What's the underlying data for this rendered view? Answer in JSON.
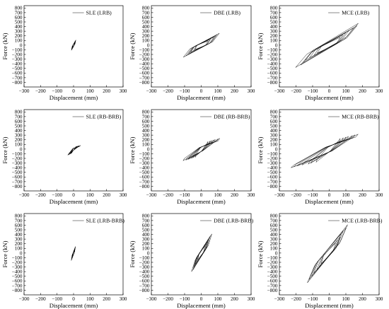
{
  "figure_title": "",
  "chart_data": [
    {
      "type": "line",
      "panel": "SLE (LRB)",
      "legend": "SLE (LRB)",
      "isolation_system": "LRB",
      "level": "SLE",
      "xlabel": "Displacement (mm)",
      "ylabel": "Force (kN)",
      "xlim": [
        -300,
        300
      ],
      "ylim": [
        -900,
        850
      ],
      "xticks": [
        -300,
        -200,
        -100,
        0,
        100,
        200,
        300
      ],
      "yticks": [
        -800,
        -700,
        -600,
        -500,
        -400,
        -300,
        -200,
        -100,
        0,
        100,
        200,
        300,
        400,
        500,
        600,
        700,
        800
      ],
      "loop": {
        "x_range": [
          -14,
          14
        ],
        "y_range": [
          -110,
          110
        ],
        "model": "bilinear",
        "dy": 38
      }
    },
    {
      "type": "line",
      "panel": "DBE (LRB)",
      "legend": "DBE (LRB)",
      "isolation_system": "LRB",
      "level": "DBE",
      "xlabel": "Displacement (mm)",
      "ylabel": "Force (kN)",
      "xlim": [
        -300,
        300
      ],
      "ylim": [
        -900,
        850
      ],
      "xticks": [
        -300,
        -200,
        -100,
        0,
        100,
        200,
        300
      ],
      "yticks": [
        -800,
        -700,
        -600,
        -500,
        -400,
        -300,
        -200,
        -100,
        0,
        100,
        200,
        300,
        400,
        500,
        600,
        700,
        800
      ],
      "loop": {
        "x_range": [
          -110,
          115
        ],
        "y_range": [
          -260,
          255
        ],
        "model": "bilinear",
        "dy": 78
      }
    },
    {
      "type": "line",
      "panel": "MCE (LRB)",
      "legend": "MCE (LRB)",
      "isolation_system": "LRB",
      "level": "MCE",
      "xlabel": "Displacement (mm)",
      "ylabel": "Force (kN)",
      "xlim": [
        -300,
        300
      ],
      "ylim": [
        -900,
        850
      ],
      "xticks": [
        -300,
        -200,
        -100,
        0,
        100,
        200,
        300
      ],
      "yticks": [
        -800,
        -700,
        -600,
        -500,
        -400,
        -300,
        -200,
        -100,
        0,
        100,
        200,
        300,
        400,
        500,
        600,
        700,
        800
      ],
      "loop": {
        "x_range": [
          -215,
          190
        ],
        "y_range": [
          -480,
          470
        ],
        "model": "bilinear",
        "dy": 105
      }
    },
    {
      "type": "line",
      "panel": "SLE (RB-BRB)",
      "legend": "SLE (RB-BRB)",
      "isolation_system": "RB-BRB",
      "level": "SLE",
      "xlabel": "Displacement (mm)",
      "ylabel": "Force (kN)",
      "xlim": [
        -300,
        300
      ],
      "ylim": [
        -900,
        850
      ],
      "xticks": [
        -300,
        -200,
        -100,
        0,
        100,
        200,
        300
      ],
      "yticks": [
        -800,
        -700,
        -600,
        -500,
        -400,
        -300,
        -200,
        -100,
        0,
        100,
        200,
        300,
        400,
        500,
        600,
        700,
        800
      ],
      "loop": {
        "x_range": [
          -38,
          42
        ],
        "y_range": [
          -130,
          80
        ],
        "model": "flat-plateau",
        "dy": 40
      }
    },
    {
      "type": "line",
      "panel": "DBE (RB-BRB)",
      "legend": "DBE (RB-BRB)",
      "isolation_system": "RB-BRB",
      "level": "DBE",
      "xlabel": "Displacement (mm)",
      "ylabel": "Force (kN)",
      "xlim": [
        -300,
        300
      ],
      "ylim": [
        -900,
        850
      ],
      "xticks": [
        -300,
        -200,
        -100,
        0,
        100,
        200,
        300
      ],
      "yticks": [
        -800,
        -700,
        -600,
        -500,
        -400,
        -300,
        -200,
        -100,
        0,
        100,
        200,
        300,
        400,
        500,
        600,
        700,
        800
      ],
      "loop": {
        "x_range": [
          -112,
          115
        ],
        "y_range": [
          -250,
          230
        ],
        "model": "flat-plateau",
        "dy": 95
      }
    },
    {
      "type": "line",
      "panel": "MCE (RB-BRB)",
      "legend": "MCE (RB-BRB)",
      "isolation_system": "RB-BRB",
      "level": "MCE",
      "xlabel": "Displacement (mm)",
      "ylabel": "Force (kN)",
      "xlim": [
        -300,
        300
      ],
      "ylim": [
        -900,
        850
      ],
      "xticks": [
        -300,
        -200,
        -100,
        0,
        100,
        200,
        300
      ],
      "yticks": [
        -800,
        -700,
        -600,
        -500,
        -400,
        -300,
        -200,
        -100,
        0,
        100,
        200,
        300,
        400,
        500,
        600,
        700,
        800
      ],
      "loop": {
        "x_range": [
          -245,
          185
        ],
        "y_range": [
          -400,
          320
        ],
        "model": "flat-plateau",
        "dy": 110
      }
    },
    {
      "type": "line",
      "panel": "SLE (LRB-BRB)",
      "legend": "SLE (LRB-BRB)",
      "isolation_system": "LRB-BRB",
      "level": "SLE",
      "xlabel": "Displacement (mm)",
      "ylabel": "Force (kN)",
      "xlim": [
        -300,
        300
      ],
      "ylim": [
        -900,
        850
      ],
      "xticks": [
        -300,
        -200,
        -100,
        0,
        100,
        200,
        300
      ],
      "yticks": [
        -800,
        -700,
        -600,
        -500,
        -400,
        -300,
        -200,
        -100,
        0,
        100,
        200,
        300,
        400,
        500,
        600,
        700,
        800
      ],
      "loop": {
        "x_range": [
          -15,
          12
        ],
        "y_range": [
          -160,
          140
        ],
        "model": "bilinear",
        "dy": 45
      }
    },
    {
      "type": "line",
      "panel": "DBE (LRB-BRB)",
      "legend": "DBE (LRB-BRB)",
      "isolation_system": "LRB-BRB",
      "level": "DBE",
      "xlabel": "Displacement (mm)",
      "ylabel": "Force (kN)",
      "xlim": [
        -300,
        300
      ],
      "ylim": [
        -900,
        850
      ],
      "xticks": [
        -300,
        -200,
        -100,
        0,
        100,
        200,
        300
      ],
      "yticks": [
        -800,
        -700,
        -600,
        -500,
        -400,
        -300,
        -200,
        -100,
        0,
        100,
        200,
        300,
        400,
        500,
        600,
        700,
        800
      ],
      "loop": {
        "x_range": [
          -60,
          65
        ],
        "y_range": [
          -400,
          410
        ],
        "model": "bilinear",
        "dy": 95
      }
    },
    {
      "type": "line",
      "panel": "MCE (LRB-BRB)",
      "legend": "MCE (LRB-BRB)",
      "isolation_system": "LRB-BRB",
      "level": "MCE",
      "xlabel": "Displacement (mm)",
      "ylabel": "Force (kN)",
      "xlim": [
        -300,
        300
      ],
      "ylim": [
        -900,
        850
      ],
      "xticks": [
        -300,
        -200,
        -100,
        0,
        100,
        200,
        300
      ],
      "yticks": [
        -800,
        -700,
        -600,
        -500,
        -400,
        -300,
        -200,
        -100,
        0,
        100,
        200,
        300,
        400,
        500,
        600,
        700,
        800
      ],
      "loop": {
        "x_range": [
          -140,
          115
        ],
        "y_range": [
          -640,
          610
        ],
        "model": "bilinear",
        "dy": 130
      }
    }
  ]
}
